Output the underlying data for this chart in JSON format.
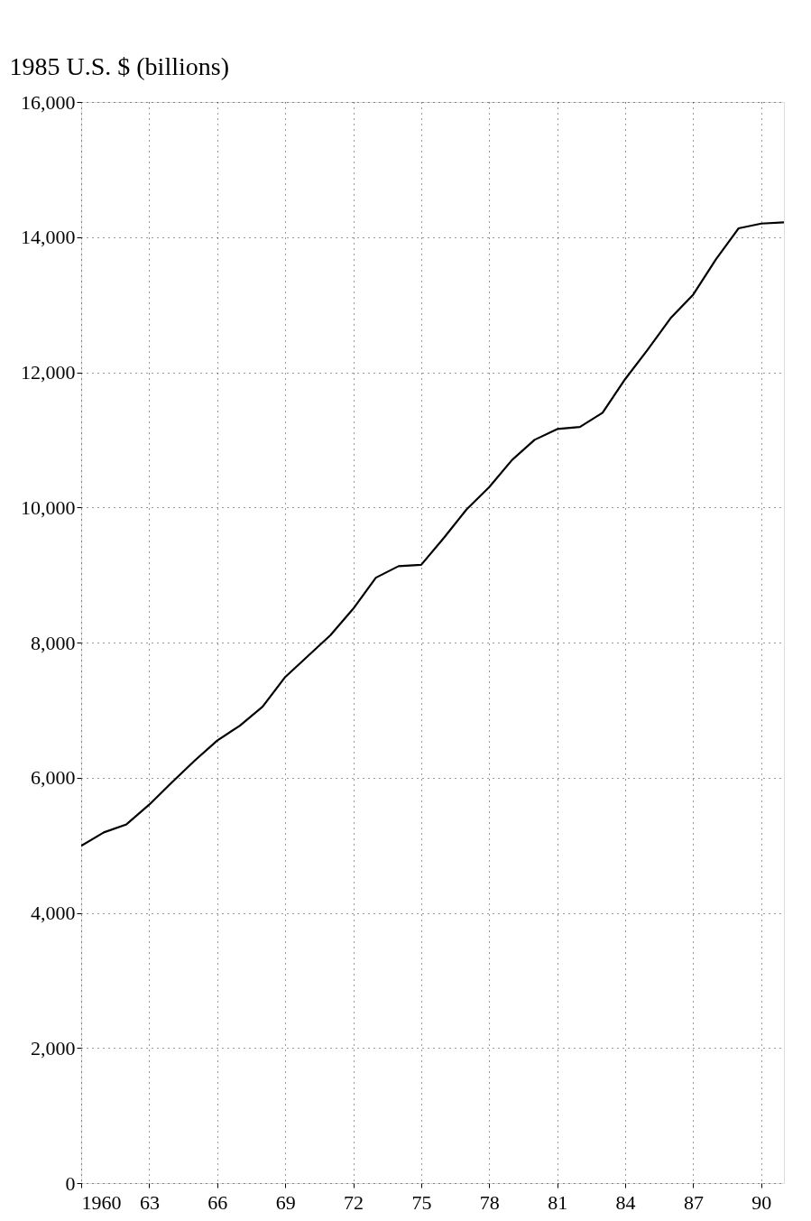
{
  "chart_data": {
    "type": "line",
    "ylabel": "1985 U.S. $ (billions)",
    "x": [
      1960,
      1961,
      1962,
      1963,
      1964,
      1965,
      1966,
      1967,
      1968,
      1969,
      1970,
      1971,
      1972,
      1973,
      1974,
      1975,
      1976,
      1977,
      1978,
      1979,
      1980,
      1981,
      1982,
      1983,
      1984,
      1985,
      1986,
      1987,
      1988,
      1989,
      1990,
      1991
    ],
    "series": [
      {
        "color": "#000000",
        "values": [
          4990,
          5190,
          5310,
          5600,
          5930,
          6250,
          6550,
          6770,
          7050,
          7490,
          7800,
          8110,
          8500,
          8960,
          9130,
          9150,
          9550,
          9970,
          10300,
          10700,
          11000,
          11160,
          11190,
          11400,
          11900,
          12340,
          12800,
          13150,
          13670,
          14130,
          14200,
          14220
        ]
      }
    ],
    "xlim": [
      1960,
      1991
    ],
    "xticks": [
      1960,
      {
        "value": 1963,
        "label": "63"
      },
      {
        "value": 1966,
        "label": "66"
      },
      {
        "value": 1969,
        "label": "69"
      },
      {
        "value": 1972,
        "label": "72"
      },
      {
        "value": 1975,
        "label": "75"
      },
      {
        "value": 1978,
        "label": "78"
      },
      {
        "value": 1981,
        "label": "81"
      },
      {
        "value": 1984,
        "label": "84"
      },
      {
        "value": 1987,
        "label": "87"
      },
      {
        "value": 1990,
        "label": "90"
      }
    ],
    "ylim": [
      0,
      16000
    ],
    "yticks": [
      0,
      {
        "value": 2000,
        "label": "2,000"
      },
      {
        "value": 4000,
        "label": "4,000"
      },
      {
        "value": 6000,
        "label": "6,000"
      },
      {
        "value": 8000,
        "label": "8,000"
      },
      {
        "value": 10000,
        "label": "10,000"
      },
      {
        "value": 12000,
        "label": "12,000"
      },
      {
        "value": 14000,
        "label": "14,000"
      },
      {
        "value": 16000,
        "label": "16,000"
      }
    ],
    "grid": true,
    "marker": "none",
    "line_style": "solid"
  }
}
